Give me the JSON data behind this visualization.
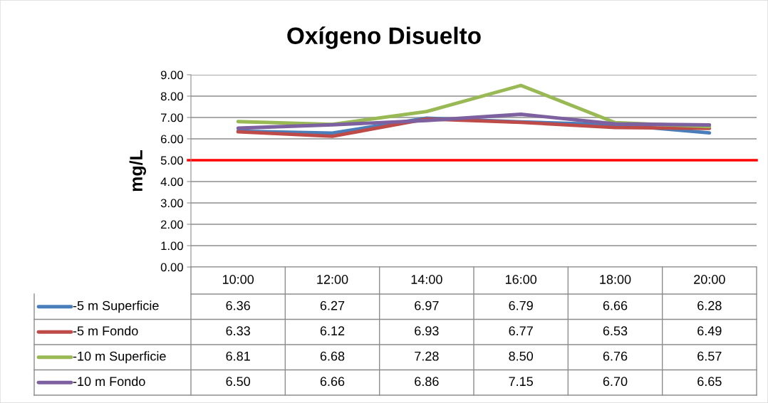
{
  "chart_data": {
    "type": "line",
    "title": "Oxígeno Disuelto",
    "ylabel": "mg/L",
    "categories": [
      "10:00",
      "12:00",
      "14:00",
      "16:00",
      "18:00",
      "20:00"
    ],
    "series": [
      {
        "name": "-5 m Superficie",
        "color": "#4a7ebb",
        "values": [
          6.36,
          6.27,
          6.97,
          6.79,
          6.66,
          6.28
        ],
        "value_labels": [
          "6.36",
          "6.27",
          "6.97",
          "6.79",
          "6.66",
          "6.28"
        ]
      },
      {
        "name": "-5 m Fondo",
        "color": "#be4b48",
        "values": [
          6.33,
          6.12,
          6.93,
          6.77,
          6.53,
          6.49
        ],
        "value_labels": [
          "6.33",
          "6.12",
          "6.93",
          "6.77",
          "6.53",
          "6.49"
        ]
      },
      {
        "name": "-10 m Superficie",
        "color": "#98b954",
        "values": [
          6.81,
          6.68,
          7.28,
          8.5,
          6.76,
          6.57
        ],
        "value_labels": [
          "6.81",
          "6.68",
          "7.28",
          "8.50",
          "6.76",
          "6.57"
        ]
      },
      {
        "name": "-10 m Fondo",
        "color": "#7d60a0",
        "values": [
          6.5,
          6.66,
          6.86,
          7.15,
          6.7,
          6.65
        ],
        "value_labels": [
          "6.50",
          "6.66",
          "6.86",
          "7.15",
          "6.70",
          "6.65"
        ]
      }
    ],
    "ylim": [
      0,
      9
    ],
    "yticks": [
      {
        "value": 0,
        "label": "0.00"
      },
      {
        "value": 1,
        "label": "1.00"
      },
      {
        "value": 2,
        "label": "2.00"
      },
      {
        "value": 3,
        "label": "3.00"
      },
      {
        "value": 4,
        "label": "4.00"
      },
      {
        "value": 5,
        "label": "5.00"
      },
      {
        "value": 6,
        "label": "6.00"
      },
      {
        "value": 7,
        "label": "7.00"
      },
      {
        "value": 8,
        "label": "8.00"
      },
      {
        "value": 9,
        "label": "9.00"
      }
    ],
    "ref_lines": [
      {
        "axis": "y",
        "value": 5,
        "label": null,
        "color": "#ff0000"
      }
    ],
    "grid": "y",
    "legend": "bottom",
    "marker": "none",
    "line_style": "solid"
  }
}
